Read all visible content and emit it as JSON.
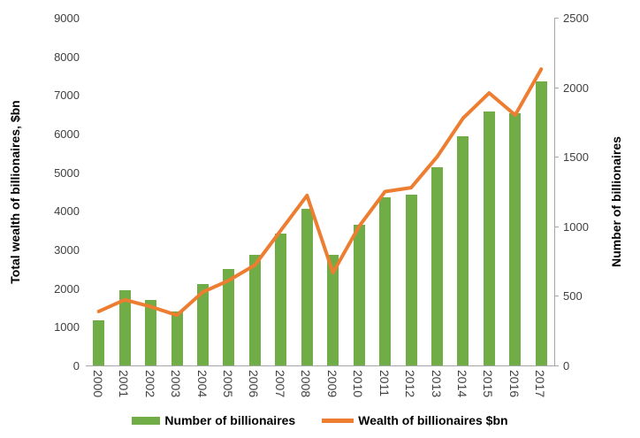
{
  "chart_data": {
    "type": "bar+line combo",
    "title": "",
    "x": [
      "2000",
      "2001",
      "2002",
      "2003",
      "2004",
      "2005",
      "2006",
      "2007",
      "2008",
      "2009",
      "2010",
      "2011",
      "2012",
      "2013",
      "2014",
      "2015",
      "2016",
      "2017"
    ],
    "series": [
      {
        "name": "Number of billionaires",
        "type": "bar",
        "axis": "right",
        "color": "#70AD47",
        "values": [
          322,
          538,
          472,
          390,
          587,
          691,
          793,
          946,
          1125,
          793,
          1011,
          1210,
          1226,
          1426,
          1645,
          1826,
          1810,
          2043
        ]
      },
      {
        "name": "Wealth of billionaires $bn",
        "type": "line",
        "axis": "left",
        "color": "#ED7D31",
        "values": [
          1400,
          1700,
          1520,
          1300,
          1900,
          2200,
          2600,
          3500,
          4400,
          2400,
          3600,
          4500,
          4600,
          5400,
          6400,
          7050,
          6480,
          7670
        ]
      }
    ],
    "axes": {
      "left": {
        "label": "Total wealth of billionaires, $bn",
        "min": 0,
        "max": 9000,
        "step": 1000
      },
      "right": {
        "label": "Number of billionaires",
        "min": 0,
        "max": 2500,
        "step": 500
      }
    },
    "grid": false,
    "legend_position": "bottom"
  },
  "legend": {
    "bar_label": "Number of billionaires",
    "line_label": "Wealth of billionaires $bn"
  },
  "colors": {
    "bar_green": "#70AD47",
    "line_orange": "#ED7D31",
    "axis_gray": "#A6A6A6",
    "tick_text": "#404040",
    "title_text": "#000000"
  }
}
